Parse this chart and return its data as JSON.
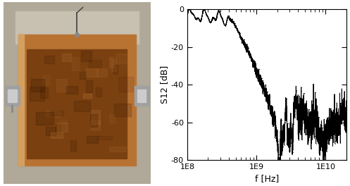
{
  "ylabel": "S12 [dB]",
  "xlabel": "f [Hz]",
  "ylim": [
    -80,
    0
  ],
  "xlim": [
    100000000.0,
    20000000000.0
  ],
  "yticks": [
    0,
    -20,
    -40,
    -60,
    -80
  ],
  "ytick_labels": [
    "0",
    "-20",
    "-40",
    "-60",
    "-80"
  ],
  "xtick_labels": [
    "1E8",
    "1E9",
    "1E10"
  ],
  "xtick_vals": [
    100000000.0,
    1000000000.0,
    10000000000.0
  ],
  "line_color": "#000000",
  "bg_color": "#ffffff",
  "linewidth": 0.7,
  "marker_size": 1.2,
  "seed": 7,
  "photo_bg": "#c8b8a0",
  "photo_box_color": "#b87333",
  "photo_inner_color": "#7a4010",
  "photo_side_color": "#888888"
}
